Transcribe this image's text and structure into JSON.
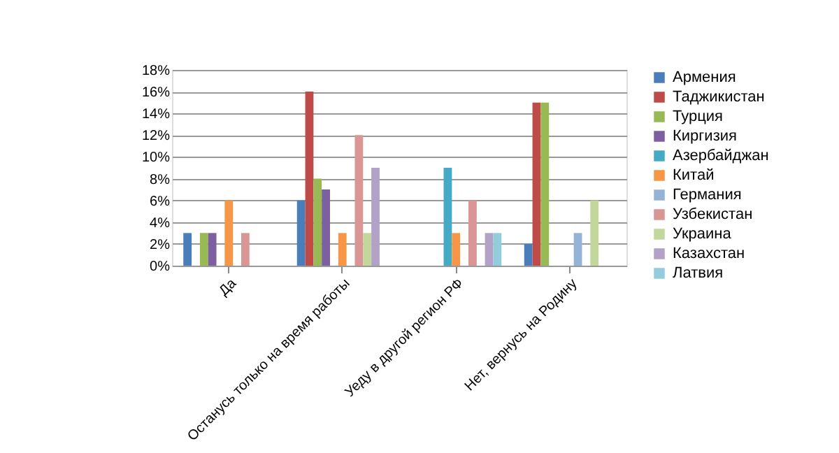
{
  "chart_data": {
    "type": "bar",
    "categories": [
      "Да",
      "Останусь только на время работы",
      "Уеду в другой регион РФ",
      "Нет, вернусь на Родину"
    ],
    "series": [
      {
        "name": "Армения",
        "color": "#4a7ebb",
        "values": [
          3,
          6,
          null,
          2
        ]
      },
      {
        "name": "Таджикистан",
        "color": "#be4b48",
        "values": [
          null,
          16,
          null,
          15
        ]
      },
      {
        "name": "Турция",
        "color": "#98b954",
        "values": [
          3,
          8,
          null,
          15
        ]
      },
      {
        "name": "Киргизия",
        "color": "#7d60a0",
        "values": [
          3,
          7,
          null,
          null
        ]
      },
      {
        "name": "Азербайджан",
        "color": "#46aac5",
        "values": [
          null,
          null,
          9,
          null
        ]
      },
      {
        "name": "Китай",
        "color": "#f79646",
        "values": [
          6,
          3,
          3,
          null
        ]
      },
      {
        "name": "Германия",
        "color": "#95b3d7",
        "values": [
          null,
          null,
          null,
          3
        ]
      },
      {
        "name": "Узбекистан",
        "color": "#d99694",
        "values": [
          3,
          12,
          6,
          null
        ]
      },
      {
        "name": "Украина",
        "color": "#c3d69b",
        "values": [
          null,
          3,
          null,
          6
        ]
      },
      {
        "name": "Казахстан",
        "color": "#b2a2c7",
        "values": [
          null,
          9,
          3,
          null
        ]
      },
      {
        "name": "Латвия",
        "color": "#93cddd",
        "values": [
          null,
          null,
          3,
          null
        ]
      }
    ],
    "ylim": [
      0,
      18
    ],
    "yticks": [
      {
        "value": 0,
        "label": "0%"
      },
      {
        "value": 2,
        "label": "2%"
      },
      {
        "value": 4,
        "label": "4%"
      },
      {
        "value": 6,
        "label": "6%"
      },
      {
        "value": 8,
        "label": "8%"
      },
      {
        "value": 10,
        "label": "10%"
      },
      {
        "value": 12,
        "label": "12%"
      },
      {
        "value": 14,
        "label": "14%"
      },
      {
        "value": 16,
        "label": "16%"
      },
      {
        "value": 18,
        "label": "18%"
      }
    ],
    "grid": "y",
    "legend": "right"
  }
}
